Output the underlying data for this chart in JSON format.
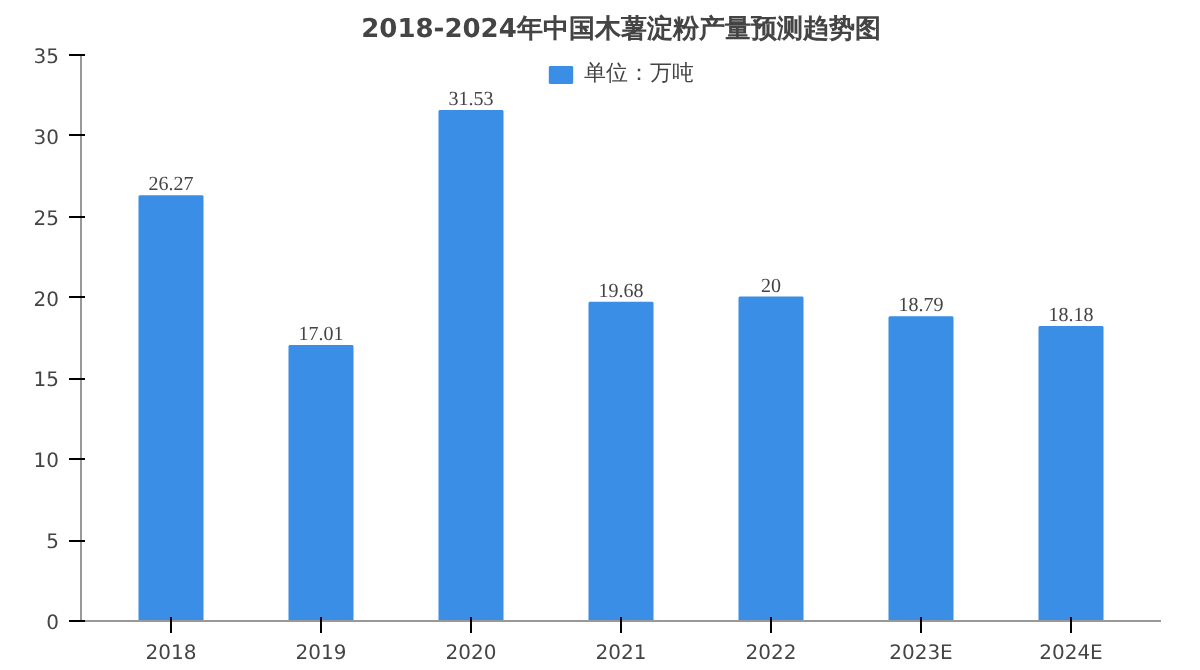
{
  "chart_data": {
    "type": "bar",
    "title": "2018-2024年中国木薯淀粉产量预测趋势图",
    "categories": [
      "2018",
      "2019",
      "2020",
      "2021",
      "2022",
      "2023E",
      "2024E"
    ],
    "series": [
      {
        "name": "单位：万吨",
        "color": "#3a8ee6",
        "values": [
          26.27,
          17.01,
          31.53,
          19.68,
          20,
          18.79,
          18.18
        ]
      }
    ],
    "ylim": [
      0,
      35
    ],
    "yticks": [
      0,
      5,
      10,
      15,
      20,
      25,
      30,
      35
    ],
    "data_labels": true,
    "legend": "top",
    "grid": false
  }
}
